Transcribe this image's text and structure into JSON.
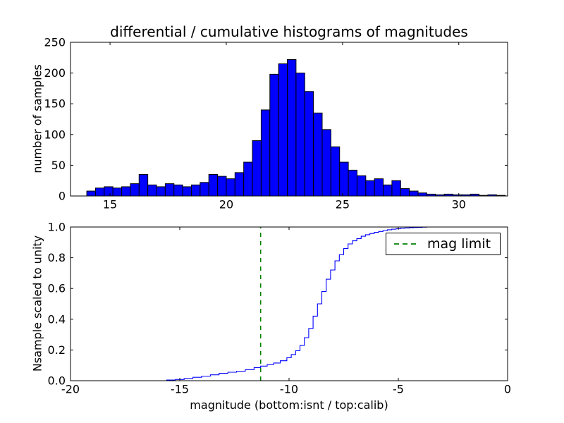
{
  "figure": {
    "title": "differential / cumulative histograms of magnitudes",
    "background": "#ffffff"
  },
  "chart_data": [
    {
      "type": "bar",
      "name": "differential-histogram-top",
      "title": "differential / cumulative histograms of magnitudes",
      "xlabel": "",
      "ylabel": "number of samples",
      "bar_color": "#0000ff",
      "bar_edge_color": "#000000",
      "grid": false,
      "xlim": [
        13.3,
        32.1
      ],
      "ylim": [
        0,
        250
      ],
      "xticks": [
        15,
        20,
        25,
        30
      ],
      "yticks": [
        0,
        50,
        100,
        150,
        200,
        250
      ],
      "bin_start": 14.0,
      "bin_width": 0.375,
      "counts": [
        8,
        13,
        15,
        13,
        15,
        20,
        35,
        18,
        15,
        20,
        18,
        15,
        18,
        22,
        35,
        32,
        28,
        38,
        55,
        90,
        140,
        198,
        215,
        222,
        200,
        170,
        135,
        108,
        80,
        55,
        42,
        33,
        25,
        28,
        18,
        25,
        12,
        8,
        5,
        3,
        2,
        3,
        2,
        2,
        3,
        1,
        2,
        1
      ]
    },
    {
      "type": "line",
      "name": "cumulative-histogram-bottom",
      "title": "",
      "xlabel": "magnitude (bottom:isnt / top:calib)",
      "ylabel": "Nsample scaled to unity",
      "line_color": "#0000ff",
      "step": true,
      "grid": false,
      "xlim": [
        -20,
        0
      ],
      "ylim": [
        0,
        1
      ],
      "xticks": [
        -20,
        -15,
        -10,
        -5,
        0
      ],
      "ytick_labels": [
        "0.0",
        "0.2",
        "0.4",
        "0.6",
        "0.8",
        "1.0"
      ],
      "yticks": [
        0,
        0.2,
        0.4,
        0.6,
        0.8,
        1.0
      ],
      "points": [
        [
          -16.0,
          0.0
        ],
        [
          -15.6,
          0.004
        ],
        [
          -15.2,
          0.008
        ],
        [
          -14.8,
          0.014
        ],
        [
          -14.4,
          0.022
        ],
        [
          -14.0,
          0.03
        ],
        [
          -13.6,
          0.038
        ],
        [
          -13.2,
          0.048
        ],
        [
          -12.8,
          0.055
        ],
        [
          -12.4,
          0.062
        ],
        [
          -12.0,
          0.072
        ],
        [
          -11.6,
          0.085
        ],
        [
          -11.3,
          0.095
        ],
        [
          -11.0,
          0.105
        ],
        [
          -10.7,
          0.115
        ],
        [
          -10.4,
          0.13
        ],
        [
          -10.1,
          0.15
        ],
        [
          -9.9,
          0.17
        ],
        [
          -9.7,
          0.195
        ],
        [
          -9.5,
          0.23
        ],
        [
          -9.3,
          0.28
        ],
        [
          -9.1,
          0.34
        ],
        [
          -8.9,
          0.42
        ],
        [
          -8.7,
          0.5
        ],
        [
          -8.5,
          0.58
        ],
        [
          -8.3,
          0.66
        ],
        [
          -8.1,
          0.72
        ],
        [
          -7.9,
          0.78
        ],
        [
          -7.7,
          0.82
        ],
        [
          -7.5,
          0.86
        ],
        [
          -7.3,
          0.89
        ],
        [
          -7.1,
          0.91
        ],
        [
          -6.9,
          0.925
        ],
        [
          -6.7,
          0.94
        ],
        [
          -6.5,
          0.95
        ],
        [
          -6.3,
          0.958
        ],
        [
          -6.1,
          0.965
        ],
        [
          -5.9,
          0.971
        ],
        [
          -5.7,
          0.977
        ],
        [
          -5.5,
          0.982
        ],
        [
          -5.3,
          0.986
        ],
        [
          -5.1,
          0.989
        ],
        [
          -4.9,
          0.992
        ],
        [
          -4.7,
          0.994
        ],
        [
          -4.5,
          0.996
        ],
        [
          -4.3,
          0.997
        ],
        [
          -4.1,
          0.998
        ],
        [
          -3.9,
          0.999
        ],
        [
          -3.7,
          1.0
        ]
      ],
      "mag_limit_line": {
        "x": -11.3,
        "color": "#008000",
        "style": "dashed"
      },
      "legend": {
        "position": "upper right",
        "entries": [
          {
            "label": "mag limit",
            "color": "#008000",
            "dashed": true
          }
        ]
      }
    }
  ]
}
